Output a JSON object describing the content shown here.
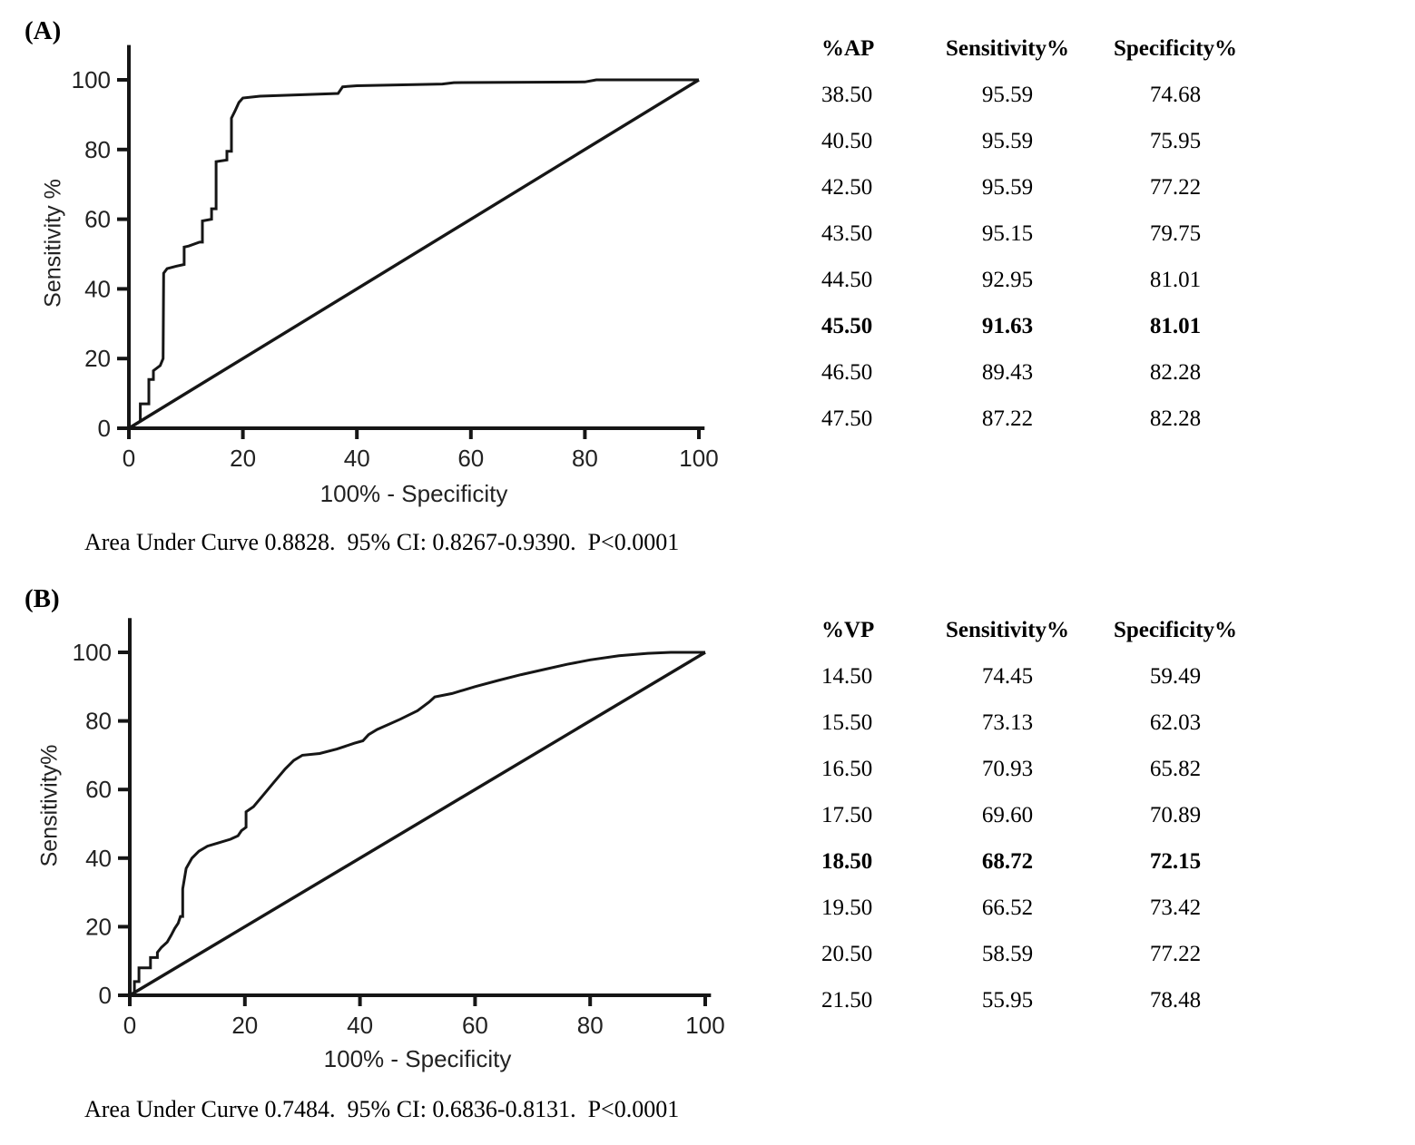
{
  "colors": {
    "ink": "#161616",
    "text": "#000000",
    "background": "#ffffff"
  },
  "chart_data": [
    {
      "id": "A",
      "type": "line",
      "panel_label": "(A)",
      "title": "",
      "xlabel": "100% - Specificity",
      "ylabel": "Sensitivity %",
      "xlim": [
        0,
        100
      ],
      "ylim": [
        0,
        100
      ],
      "x_ticks": [
        0,
        20,
        40,
        60,
        80,
        100
      ],
      "y_ticks": [
        0,
        20,
        40,
        60,
        80,
        100
      ],
      "grid": false,
      "caption": "Area Under Curve 0.8828.  95% CI: 0.8267-0.9390.  P<0.0001",
      "series": [
        {
          "name": "roc-curve",
          "points": [
            [
              0,
              0
            ],
            [
              1,
              1
            ],
            [
              2,
              2
            ],
            [
              2,
              7
            ],
            [
              3.5,
              7
            ],
            [
              3.5,
              14
            ],
            [
              4.3,
              14
            ],
            [
              4.3,
              16.5
            ],
            [
              5.5,
              18
            ],
            [
              6,
              20
            ],
            [
              6.1,
              44.5
            ],
            [
              6.7,
              45.8
            ],
            [
              8.3,
              46.5
            ],
            [
              9.7,
              47
            ],
            [
              9.7,
              52
            ],
            [
              10.5,
              52.3
            ],
            [
              12.4,
              53.4
            ],
            [
              12.9,
              53.4
            ],
            [
              12.9,
              59.5
            ],
            [
              14.5,
              60
            ],
            [
              14.5,
              63
            ],
            [
              15.3,
              63
            ],
            [
              15.3,
              76.5
            ],
            [
              17.2,
              77
            ],
            [
              17.2,
              79.5
            ],
            [
              18,
              79.5
            ],
            [
              18,
              89
            ],
            [
              18.6,
              91
            ],
            [
              19.3,
              93.5
            ],
            [
              20,
              94.8
            ],
            [
              23,
              95.3
            ],
            [
              36.7,
              96.1
            ],
            [
              37.5,
              98
            ],
            [
              40,
              98.3
            ],
            [
              55,
              98.8
            ],
            [
              57,
              99.2
            ],
            [
              80,
              99.4
            ],
            [
              82,
              100
            ],
            [
              100,
              100
            ]
          ]
        },
        {
          "name": "reference-diagonal",
          "points": [
            [
              0,
              0
            ],
            [
              100,
              100
            ]
          ]
        }
      ],
      "table": {
        "headers": [
          "%AP",
          "Sensitivity%",
          "Specificity%"
        ],
        "rows": [
          [
            "38.50",
            "95.59",
            "74.68"
          ],
          [
            "40.50",
            "95.59",
            "75.95"
          ],
          [
            "42.50",
            "95.59",
            "77.22"
          ],
          [
            "43.50",
            "95.15",
            "79.75"
          ],
          [
            "44.50",
            "92.95",
            "81.01"
          ],
          [
            "45.50",
            "91.63",
            "81.01"
          ],
          [
            "46.50",
            "89.43",
            "82.28"
          ],
          [
            "47.50",
            "87.22",
            "82.28"
          ]
        ],
        "bold_row_index": 5
      }
    },
    {
      "id": "B",
      "type": "line",
      "panel_label": "(B)",
      "title": "",
      "xlabel": "100% - Specificity",
      "ylabel": "Sensitivity%",
      "xlim": [
        0,
        100
      ],
      "ylim": [
        0,
        100
      ],
      "x_ticks": [
        0,
        20,
        40,
        60,
        80,
        100
      ],
      "y_ticks": [
        0,
        20,
        40,
        60,
        80,
        100
      ],
      "grid": false,
      "caption": "Area Under Curve 0.7484.  95% CI: 0.6836-0.8131.  P<0.0001",
      "series": [
        {
          "name": "roc-curve",
          "points": [
            [
              0,
              0
            ],
            [
              0.8,
              0
            ],
            [
              0.8,
              4
            ],
            [
              1.6,
              4
            ],
            [
              1.6,
              8
            ],
            [
              3.6,
              8
            ],
            [
              3.6,
              11
            ],
            [
              4.8,
              11
            ],
            [
              4.8,
              12.5
            ],
            [
              5.5,
              14
            ],
            [
              6.5,
              15.5
            ],
            [
              7.2,
              17.5
            ],
            [
              7.8,
              19.5
            ],
            [
              8.4,
              21
            ],
            [
              8.8,
              23
            ],
            [
              9.2,
              23
            ],
            [
              9.2,
              31
            ],
            [
              9.8,
              37
            ],
            [
              10.8,
              40
            ],
            [
              12,
              42
            ],
            [
              13.5,
              43.5
            ],
            [
              15.5,
              44.5
            ],
            [
              17.5,
              45.5
            ],
            [
              18.8,
              46.5
            ],
            [
              19.4,
              48
            ],
            [
              20.2,
              49
            ],
            [
              20.2,
              53.5
            ],
            [
              21.5,
              55
            ],
            [
              23,
              58
            ],
            [
              25,
              62
            ],
            [
              27,
              66
            ],
            [
              28.5,
              68.5
            ],
            [
              30,
              70
            ],
            [
              33,
              70.5
            ],
            [
              36,
              71.8
            ],
            [
              39,
              73.5
            ],
            [
              40.5,
              74.2
            ],
            [
              41.5,
              76
            ],
            [
              43,
              77.5
            ],
            [
              45,
              79
            ],
            [
              47,
              80.5
            ],
            [
              50,
              83
            ],
            [
              52,
              85.5
            ],
            [
              53,
              87
            ],
            [
              56,
              88
            ],
            [
              60,
              90
            ],
            [
              64,
              91.8
            ],
            [
              68,
              93.5
            ],
            [
              72,
              95
            ],
            [
              76,
              96.5
            ],
            [
              80,
              97.8
            ],
            [
              85,
              99
            ],
            [
              90,
              99.7
            ],
            [
              94,
              100
            ],
            [
              100,
              100
            ]
          ]
        },
        {
          "name": "reference-diagonal",
          "points": [
            [
              0,
              0
            ],
            [
              100,
              100
            ]
          ]
        }
      ],
      "table": {
        "headers": [
          "%VP",
          "Sensitivity%",
          "Specificity%"
        ],
        "rows": [
          [
            "14.50",
            "74.45",
            "59.49"
          ],
          [
            "15.50",
            "73.13",
            "62.03"
          ],
          [
            "16.50",
            "70.93",
            "65.82"
          ],
          [
            "17.50",
            "69.60",
            "70.89"
          ],
          [
            "18.50",
            "68.72",
            "72.15"
          ],
          [
            "19.50",
            "66.52",
            "73.42"
          ],
          [
            "20.50",
            "58.59",
            "77.22"
          ],
          [
            "21.50",
            "55.95",
            "78.48"
          ]
        ],
        "bold_row_index": 4
      }
    }
  ]
}
